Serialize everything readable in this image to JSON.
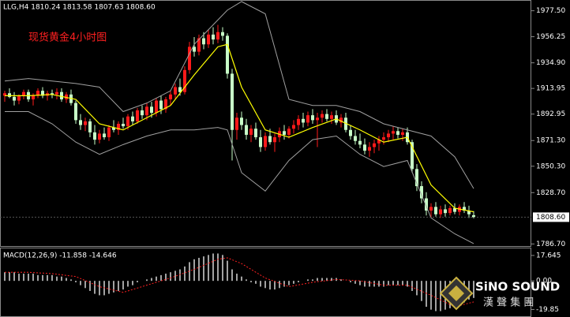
{
  "chart_data": {
    "type": "candlestick",
    "title": "LLG,H4  1810.24 1813.58 1807.63 1808.60",
    "annotation": "现货黄金4小时图",
    "up_color": "#ff1a1a",
    "down_color": "#c8ffc8",
    "ylim": [
      1785,
      1985
    ],
    "yticks": [
      {
        "value": 1977.5,
        "label": "1977.50"
      },
      1956.25,
      {
        "value": 1934.9,
        "label": "1934.90"
      },
      1913.95,
      1892.95,
      {
        "value": 1871.3,
        "label": "1871.30"
      },
      {
        "value": 1850.3,
        "label": "1850.30"
      },
      {
        "value": 1828.7,
        "label": "1828.70"
      },
      {
        "value": 1786.7,
        "label": "1786.70"
      }
    ],
    "current_price": {
      "value": 1808.6,
      "label": "1808.60"
    },
    "candles": [
      [
        1908,
        1912,
        1903,
        1910
      ],
      [
        1910,
        1914,
        1906,
        1907
      ],
      [
        1907,
        1911,
        1900,
        1904
      ],
      [
        1904,
        1909,
        1901,
        1908
      ],
      [
        1908,
        1913,
        1905,
        1911
      ],
      [
        1911,
        1913,
        1903,
        1905
      ],
      [
        1905,
        1910,
        1900,
        1908
      ],
      [
        1908,
        1914,
        1906,
        1912
      ],
      [
        1912,
        1915,
        1906,
        1908
      ],
      [
        1908,
        1912,
        1904,
        1910
      ],
      [
        1910,
        1913,
        1906,
        1909
      ],
      [
        1909,
        1914,
        1905,
        1911
      ],
      [
        1911,
        1914,
        1903,
        1905
      ],
      [
        1905,
        1911,
        1902,
        1909
      ],
      [
        1909,
        1913,
        1900,
        1902
      ],
      [
        1902,
        1904,
        1885,
        1888
      ],
      [
        1888,
        1893,
        1880,
        1884
      ],
      [
        1884,
        1890,
        1879,
        1887
      ],
      [
        1887,
        1889,
        1874,
        1878
      ],
      [
        1878,
        1884,
        1868,
        1872
      ],
      [
        1872,
        1880,
        1869,
        1877
      ],
      [
        1877,
        1882,
        1872,
        1874
      ],
      [
        1874,
        1884,
        1871,
        1882
      ],
      [
        1882,
        1888,
        1878,
        1880
      ],
      [
        1880,
        1887,
        1876,
        1885
      ],
      [
        1885,
        1890,
        1881,
        1883
      ],
      [
        1883,
        1893,
        1880,
        1891
      ],
      [
        1891,
        1895,
        1884,
        1887
      ],
      [
        1887,
        1898,
        1885,
        1896
      ],
      [
        1896,
        1900,
        1889,
        1892
      ],
      [
        1892,
        1902,
        1888,
        1899
      ],
      [
        1899,
        1903,
        1890,
        1894
      ],
      [
        1894,
        1906,
        1891,
        1904
      ],
      [
        1904,
        1908,
        1893,
        1897
      ],
      [
        1897,
        1907,
        1894,
        1905
      ],
      [
        1905,
        1912,
        1900,
        1909
      ],
      [
        1909,
        1918,
        1905,
        1915
      ],
      [
        1915,
        1922,
        1908,
        1911
      ],
      [
        1911,
        1932,
        1909,
        1929
      ],
      [
        1929,
        1952,
        1926,
        1948
      ],
      [
        1948,
        1956,
        1940,
        1944
      ],
      [
        1944,
        1958,
        1941,
        1955
      ],
      [
        1955,
        1960,
        1946,
        1950
      ],
      [
        1950,
        1962,
        1947,
        1958
      ],
      [
        1958,
        1964,
        1950,
        1954
      ],
      [
        1954,
        1966,
        1951,
        1960
      ],
      [
        1960,
        1964,
        1953,
        1957
      ],
      [
        1957,
        1959,
        1922,
        1926
      ],
      [
        1926,
        1930,
        1855,
        1880
      ],
      [
        1880,
        1894,
        1872,
        1890
      ],
      [
        1890,
        1895,
        1880,
        1884
      ],
      [
        1884,
        1889,
        1872,
        1876
      ],
      [
        1876,
        1884,
        1870,
        1881
      ],
      [
        1881,
        1886,
        1872,
        1874
      ],
      [
        1874,
        1880,
        1862,
        1866
      ],
      [
        1866,
        1878,
        1863,
        1875
      ],
      [
        1875,
        1881,
        1868,
        1870
      ],
      [
        1870,
        1877,
        1862,
        1874
      ],
      [
        1874,
        1882,
        1870,
        1879
      ],
      [
        1879,
        1884,
        1872,
        1876
      ],
      [
        1876,
        1883,
        1873,
        1881
      ],
      [
        1881,
        1888,
        1877,
        1884
      ],
      [
        1884,
        1892,
        1880,
        1889
      ],
      [
        1889,
        1894,
        1882,
        1886
      ],
      [
        1886,
        1895,
        1883,
        1892
      ],
      [
        1892,
        1897,
        1885,
        1888
      ],
      [
        1888,
        1894,
        1866,
        1890
      ],
      [
        1890,
        1896,
        1886,
        1893
      ],
      [
        1893,
        1897,
        1887,
        1889
      ],
      [
        1889,
        1895,
        1885,
        1892
      ],
      [
        1892,
        1896,
        1884,
        1886
      ],
      [
        1886,
        1893,
        1882,
        1890
      ],
      [
        1890,
        1894,
        1878,
        1880
      ],
      [
        1880,
        1884,
        1872,
        1875
      ],
      [
        1875,
        1880,
        1868,
        1871
      ],
      [
        1871,
        1877,
        1865,
        1868
      ],
      [
        1868,
        1873,
        1860,
        1863
      ],
      [
        1863,
        1870,
        1858,
        1866
      ],
      [
        1866,
        1872,
        1861,
        1869
      ],
      [
        1869,
        1875,
        1863,
        1872
      ],
      [
        1872,
        1878,
        1868,
        1874
      ],
      [
        1874,
        1880,
        1870,
        1877
      ],
      [
        1877,
        1883,
        1872,
        1879
      ],
      [
        1879,
        1882,
        1873,
        1876
      ],
      [
        1876,
        1881,
        1871,
        1878
      ],
      [
        1878,
        1882,
        1868,
        1870
      ],
      [
        1870,
        1872,
        1845,
        1848
      ],
      [
        1848,
        1852,
        1830,
        1834
      ],
      [
        1834,
        1838,
        1820,
        1824
      ],
      [
        1824,
        1829,
        1810,
        1814
      ],
      [
        1814,
        1820,
        1808,
        1817
      ],
      [
        1817,
        1821,
        1809,
        1811
      ],
      [
        1811,
        1818,
        1808,
        1815
      ],
      [
        1815,
        1819,
        1809,
        1812
      ],
      [
        1812,
        1818,
        1810,
        1816
      ],
      [
        1816,
        1820,
        1811,
        1813
      ],
      [
        1813,
        1819,
        1810,
        1817
      ],
      [
        1817,
        1821,
        1812,
        1814
      ],
      [
        1814,
        1818,
        1808,
        1811
      ],
      [
        1810.24,
        1813.58,
        1807.63,
        1808.6
      ]
    ],
    "lines": [
      {
        "color": "#ffff00",
        "width": 1.2,
        "x": [
          0,
          5,
          10,
          15,
          20,
          25,
          30,
          35,
          40,
          45,
          47,
          50,
          55,
          60,
          65,
          70,
          75,
          80,
          85,
          90,
          95,
          99
        ],
        "values": [
          1908,
          1908,
          1909,
          1905,
          1885,
          1880,
          1890,
          1900,
          1925,
          1948,
          1950,
          1915,
          1880,
          1874,
          1882,
          1889,
          1880,
          1870,
          1874,
          1835,
          1816,
          1813
        ]
      },
      {
        "color": "#a0a0a0",
        "width": 1,
        "x": [
          0,
          5,
          10,
          15,
          20,
          25,
          30,
          35,
          40,
          45,
          47,
          50,
          55,
          60,
          65,
          70,
          75,
          80,
          85,
          90,
          95,
          99
        ],
        "values": [
          1920,
          1922,
          1920,
          1918,
          1915,
          1895,
          1902,
          1912,
          1950,
          1970,
          1978,
          1985,
          1975,
          1905,
          1900,
          1900,
          1895,
          1885,
          1880,
          1875,
          1858,
          1832
        ]
      },
      {
        "color": "#a0a0a0",
        "width": 1,
        "x": [
          0,
          5,
          10,
          15,
          20,
          25,
          30,
          35,
          40,
          45,
          47,
          50,
          55,
          60,
          65,
          70,
          75,
          80,
          85,
          90,
          95,
          99
        ],
        "values": [
          1895,
          1895,
          1885,
          1870,
          1860,
          1868,
          1875,
          1880,
          1880,
          1882,
          1880,
          1845,
          1830,
          1855,
          1872,
          1875,
          1860,
          1850,
          1855,
          1808,
          1795,
          1787
        ]
      }
    ],
    "macd": {
      "label": "MACD(12,26,9) -11.858 -14.646",
      "ylim": [
        -24,
        22
      ],
      "yticks": [
        17.645,
        {
          "value": 0,
          "label": "0.00"
        },
        -19.85
      ],
      "hist_color": "#d8d8d8",
      "signal_color": "#ff2020",
      "values": [
        6,
        6,
        6,
        5,
        5,
        5,
        5,
        4,
        4,
        4,
        4,
        3,
        3,
        2,
        1,
        -1,
        -3,
        -5,
        -7,
        -9,
        -10,
        -10,
        -9,
        -8,
        -7,
        -6,
        -4,
        -3,
        -1,
        0,
        1,
        2,
        3,
        4,
        5,
        6,
        7,
        8,
        10,
        13,
        15,
        16,
        17,
        18,
        19,
        19,
        18,
        14,
        8,
        5,
        3,
        1,
        -1,
        -2,
        -4,
        -5,
        -6,
        -6,
        -5,
        -4,
        -3,
        -2,
        -1,
        0,
        1,
        1,
        2,
        2,
        2,
        2,
        2,
        1,
        0,
        -1,
        -2,
        -3,
        -4,
        -4,
        -4,
        -4,
        -4,
        -3,
        -3,
        -3,
        -3,
        -4,
        -7,
        -10,
        -14,
        -18,
        -20,
        -21,
        -21,
        -20,
        -19,
        -18,
        -16,
        -15,
        -13,
        -11.858
      ],
      "signal_x": [
        0,
        5,
        10,
        15,
        20,
        25,
        30,
        35,
        40,
        45,
        47,
        50,
        55,
        60,
        65,
        70,
        75,
        80,
        85,
        90,
        95,
        99
      ],
      "signal": [
        6,
        6,
        5,
        3,
        -4,
        -8,
        -3,
        2,
        8,
        15,
        16,
        12,
        2,
        -4,
        -1,
        1,
        0,
        -3,
        -3,
        -10,
        -18,
        -14.646
      ]
    },
    "logo": {
      "name": "SiNO SOUND",
      "subtitle": "漢 聲 集 團"
    }
  }
}
